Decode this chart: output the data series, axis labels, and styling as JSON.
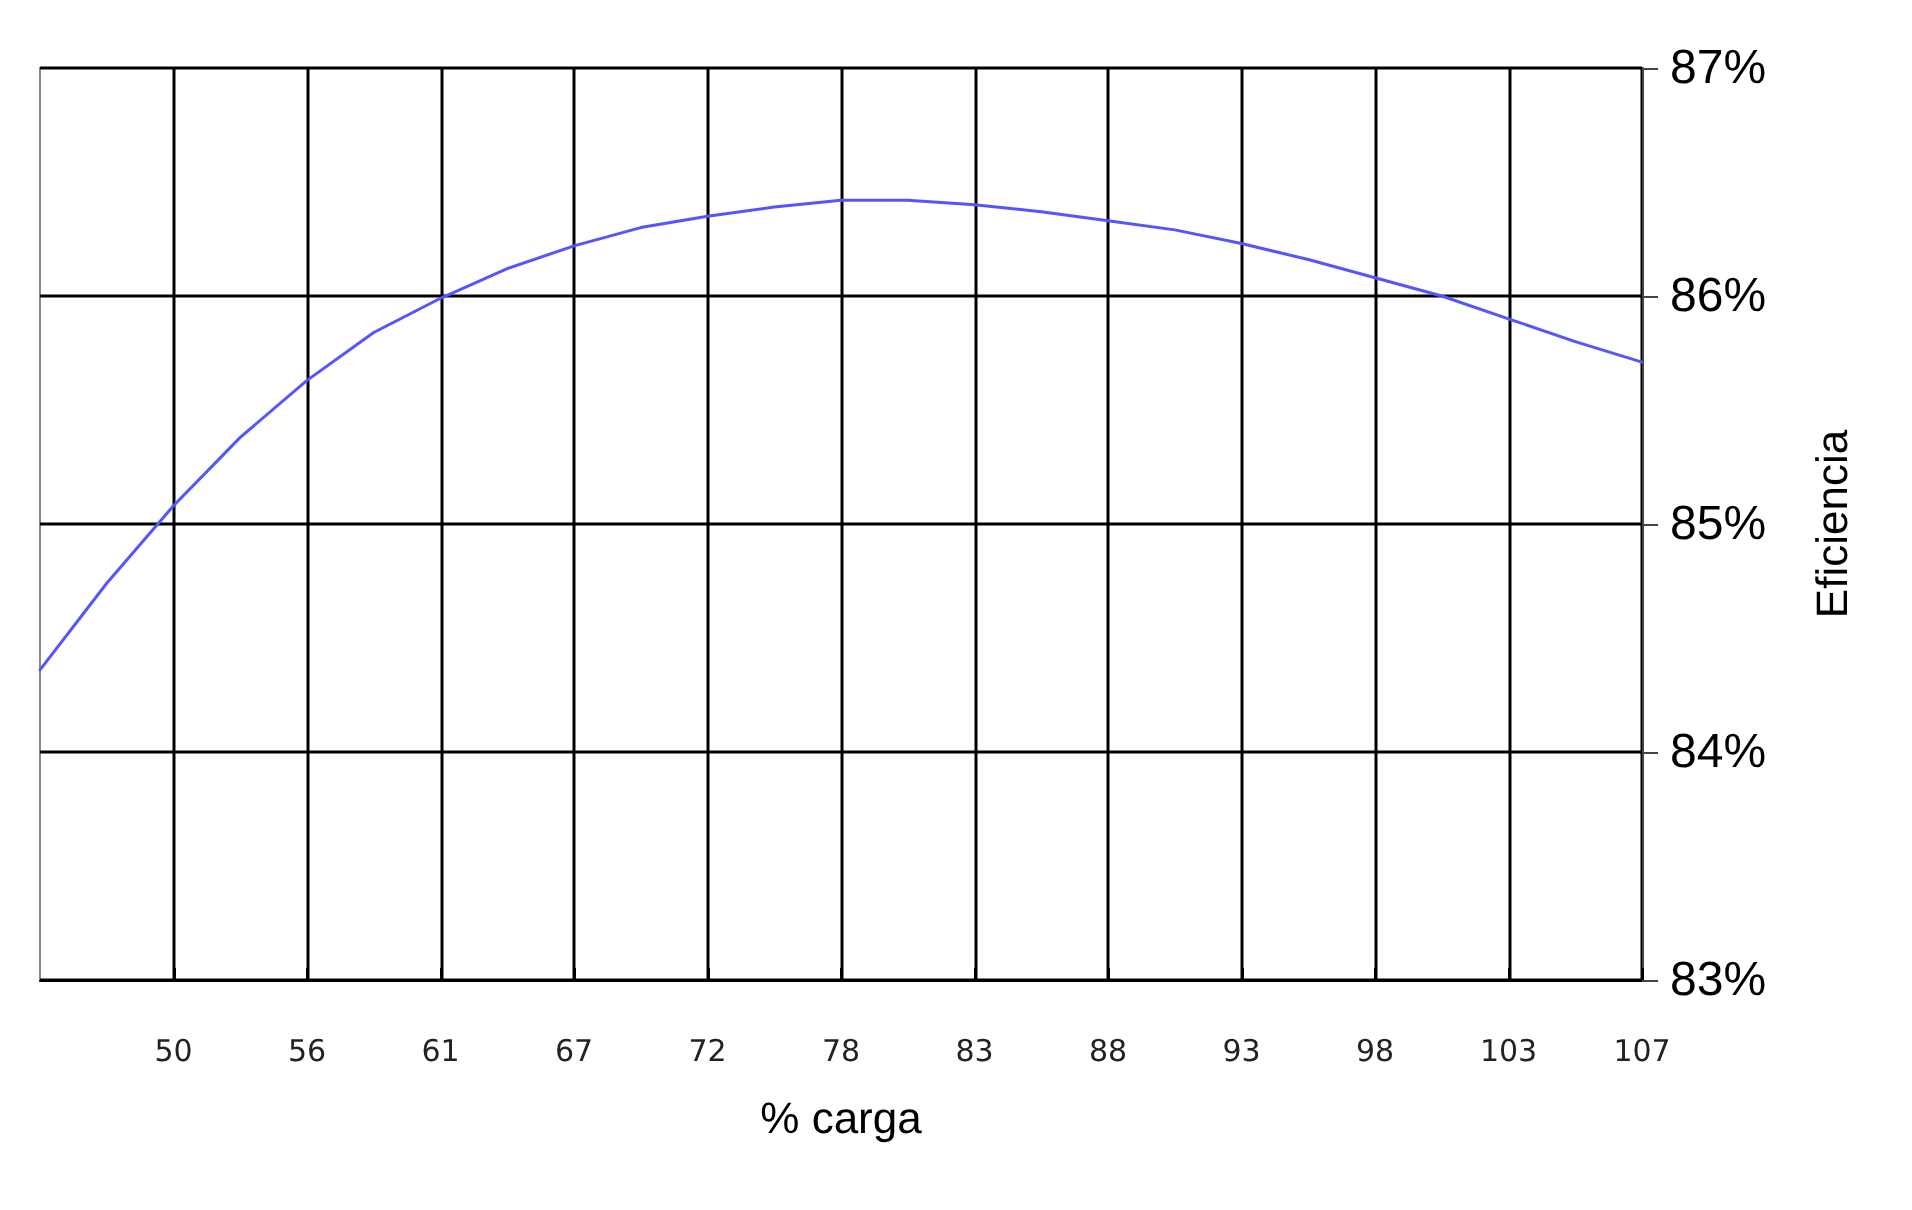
{
  "chart_data": {
    "type": "line",
    "xlabel": "% carga",
    "ylabel": "Eficiencia",
    "categories": [
      null,
      null,
      "50",
      null,
      "56",
      null,
      "61",
      null,
      "67",
      null,
      "72",
      null,
      "78",
      null,
      "83",
      null,
      "88",
      null,
      "93",
      null,
      "98",
      null,
      "103",
      null,
      "107"
    ],
    "series": [
      {
        "color": "#5555ff",
        "values": [
          84.36,
          84.74,
          85.08,
          85.38,
          85.63,
          85.84,
          85.99,
          86.12,
          86.22,
          86.3,
          86.35,
          86.39,
          86.42,
          86.42,
          86.4,
          86.37,
          86.33,
          86.29,
          86.23,
          86.16,
          86.08,
          86.0,
          85.9,
          85.8,
          85.71
        ]
      }
    ],
    "ylim": [
      83,
      87
    ],
    "yticks": [
      {
        "value": 83,
        "label": "83%"
      },
      {
        "value": 84,
        "label": "84%"
      },
      {
        "value": 85,
        "label": "85%"
      },
      {
        "value": 86,
        "label": "86%"
      },
      {
        "value": 87,
        "label": "87%"
      }
    ],
    "grid": true,
    "marker": "none",
    "line_style": "solid"
  }
}
